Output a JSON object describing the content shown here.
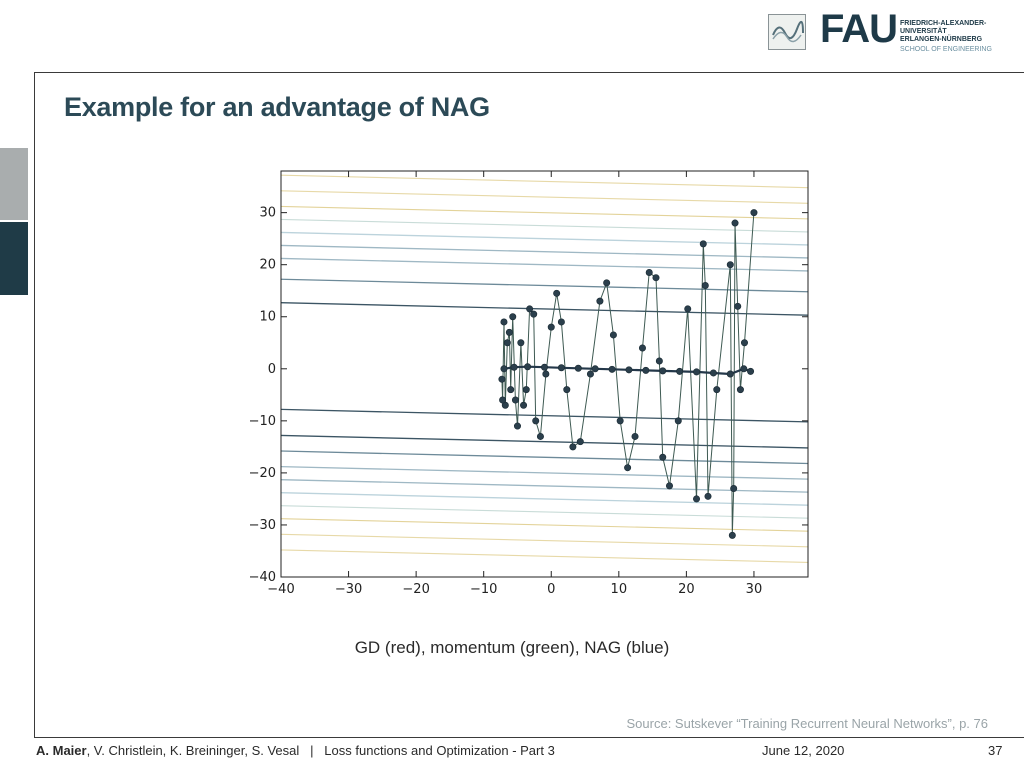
{
  "header": {
    "fau_wordmark": "FAU",
    "university_lines": [
      "FRIEDRICH-ALEXANDER-",
      "UNIVERSITÄT",
      "ERLANGEN-NÜRNBERG"
    ],
    "school": "SCHOOL OF ENGINEERING"
  },
  "slide": {
    "title": "Example for an advantage of NAG",
    "caption": "GD (red), momentum (green), NAG (blue)",
    "source": "Source: Sutskever “Training Recurrent Neural Networks”, p. 76"
  },
  "footer": {
    "author_bold": "A. Maier",
    "authors_rest": ", V. Christlein, K. Breininger, S. Vesal   |   Loss functions and Optimization - Part 3",
    "date": "June 12, 2020",
    "page": "37"
  },
  "colors": {
    "title": "#2c4a57",
    "dark_teal": "#1f3b47",
    "trajectory": "#27404b",
    "markers": "#2b3f4c"
  },
  "chart_data": {
    "type": "line",
    "xlim": [
      -40,
      38
    ],
    "ylim": [
      -40,
      38
    ],
    "xticks": [
      -40,
      -30,
      -20,
      -10,
      0,
      10,
      20,
      30
    ],
    "yticks": [
      30,
      20,
      10,
      0,
      -10,
      -20,
      -30,
      -40
    ],
    "xtick_labels": [
      "−40",
      "−30",
      "−20",
      "−10",
      "0",
      "10",
      "20",
      "30"
    ],
    "ytick_labels": [
      "30",
      "20",
      "10",
      "0",
      "−10",
      "−20",
      "−30",
      "−40"
    ],
    "grid": false,
    "contour_levels_y": [
      36,
      33,
      30,
      27.5,
      25,
      22.5,
      20,
      16,
      11.5,
      -9,
      -14,
      -17,
      -20,
      -22.5,
      -25,
      -27.5,
      -30,
      -33,
      -36
    ],
    "series": [
      {
        "x": [
          30,
          28.6,
          28,
          27.6,
          27.2,
          27,
          26.8,
          26.5,
          24.5,
          23.2,
          22.8,
          22.5,
          21.5,
          20.2,
          18.8,
          17.5,
          16.5,
          16,
          15.5,
          14.5,
          13.5,
          12.4,
          11.3,
          10.2,
          9.2,
          8.2,
          7.2,
          5.8,
          4.3,
          3.2,
          2.3,
          1.5,
          0.8,
          0,
          -0.8,
          -1.6,
          -2.3,
          -2.6,
          -3.2,
          -3.7,
          -4.1,
          -4.5,
          -5,
          -5.3,
          -5.7,
          -6,
          -6.2,
          -6.5,
          -6.8,
          -7,
          -7.2,
          -7.3
        ],
        "y": [
          30,
          5,
          -4,
          12,
          28,
          -23,
          -32,
          20,
          -4,
          -24.5,
          16,
          24,
          -25,
          11.5,
          -10,
          -22.5,
          -17,
          1.5,
          17.5,
          18.5,
          4,
          -13,
          -19,
          -10,
          6.5,
          16.5,
          13,
          -1,
          -14,
          -15,
          -4,
          9,
          14.5,
          8,
          -1,
          -13,
          -10,
          10.5,
          11.5,
          -4,
          -7,
          5,
          -11,
          -6,
          10,
          -4,
          7,
          5,
          -7,
          9,
          -6,
          -2
        ]
      },
      {
        "x": [
          29.5,
          28.5,
          26.5,
          24,
          21.5,
          19,
          16.5,
          14,
          11.5,
          9,
          6.5,
          4,
          1.5,
          -1,
          -3.5,
          -5.5,
          -7
        ],
        "y": [
          -0.5,
          0,
          -1,
          -0.8,
          -0.6,
          -0.5,
          -0.4,
          -0.3,
          -0.2,
          -0.1,
          0,
          0.1,
          0.2,
          0.3,
          0.4,
          0.3,
          0
        ]
      }
    ]
  }
}
